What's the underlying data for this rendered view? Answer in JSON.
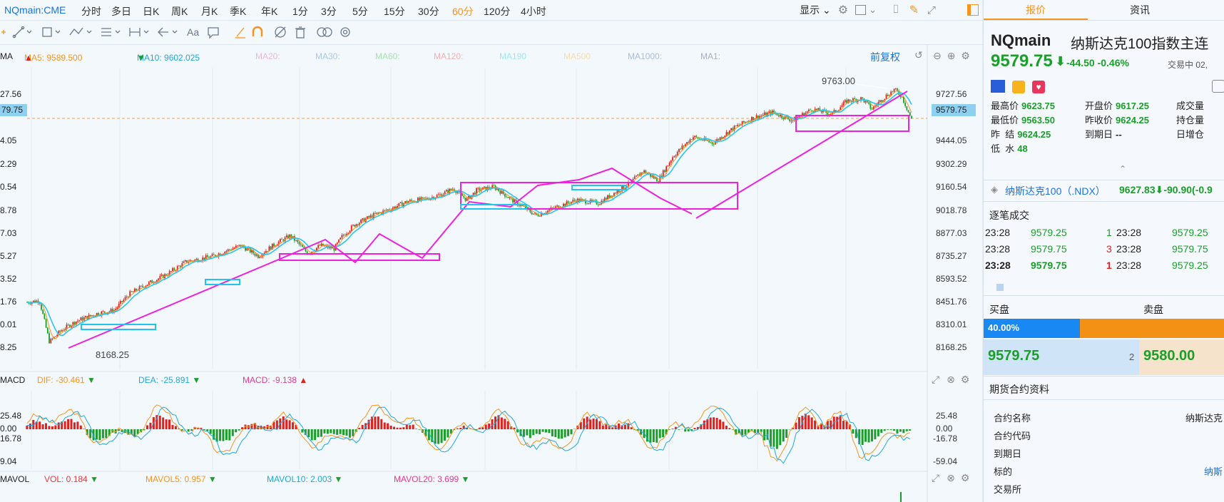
{
  "toolbar": {
    "symbol": "NQmain:CME",
    "periods": [
      "分时",
      "多日",
      "日K",
      "周K",
      "月K",
      "季K",
      "年K",
      "1分",
      "3分",
      "5分",
      "15分",
      "30分",
      "60分",
      "120分",
      "4小时"
    ],
    "active_period": "60分",
    "display_label": "显示"
  },
  "ma_legend": {
    "label": "MA",
    "ma5": "MA5: 9589.500",
    "ma10": "MA10: 9602.025",
    "ma20": "MA20:",
    "ma30": "MA30:",
    "ma60": "MA60:",
    "ma120": "MA120:",
    "ma190": "MA190",
    "ma500": "MA500",
    "ma1000": "MA1000:",
    "ma1": "MA1:",
    "adjust": "前复权",
    "colors": {
      "ma5": "#f7931e",
      "ma10": "#22a7d8",
      "ma20": "#e8a0c8",
      "ma30": "#9ec4e8",
      "ma60": "#9ae0a8",
      "ma120": "#f0a0a0",
      "ma190": "#8ee8f0",
      "ma500": "#f8d8a0",
      "ma1000": "#a0b8d8",
      "ma1": "#a0a8b8"
    }
  },
  "main_axis": [
    "9727.56",
    "9579.75",
    "9444.05",
    "9302.29",
    "9160.54",
    "9018.78",
    "8877.03",
    "8735.27",
    "8593.52",
    "8451.76",
    "8310.01",
    "8168.25"
  ],
  "main_axis_left": [
    "27.56",
    "79.75",
    "4.05",
    "2.29",
    "0.54",
    "8.78",
    "7.03",
    "5.27",
    "3.52",
    "1.76",
    "0.01",
    "8.25"
  ],
  "annotations": {
    "high": "9763.00",
    "low": "8168.25"
  },
  "macd_legend": {
    "label": "MACD",
    "dif": "DIF: -30.461",
    "dea": "DEA: -25.891",
    "macd": "MACD: -9.138"
  },
  "macd_axis": [
    "25.48",
    "0.00",
    "-16.78",
    "-59.04"
  ],
  "macd_axis_left": [
    "25.48",
    "0.00",
    "16.78",
    "9.04"
  ],
  "vol_legend": {
    "label": "MAVOL",
    "vol": "VOL: 0.184",
    "mavol5": "MAVOL5: 0.957",
    "mavol10": "MAVOL10: 2.003",
    "mavol20": "MAVOL20: 3.699"
  },
  "sidebar": {
    "tabs": [
      "报价",
      "资讯"
    ],
    "code": "NQmain",
    "name": "纳斯达克100指数主连",
    "price": "9579.75",
    "change": "-44.50",
    "change_pct": "-0.46%",
    "status": "交易中 02,",
    "stats": [
      {
        "k": "最高价",
        "v": "9623.75"
      },
      {
        "k": "开盘价",
        "v": "9617.25"
      },
      {
        "k": "成交量",
        "v": ""
      },
      {
        "k": "最低价",
        "v": "9563.50"
      },
      {
        "k": "昨收价",
        "v": "9624.25"
      },
      {
        "k": "持仓量",
        "v": ""
      },
      {
        "k": "昨  结",
        "v": "9624.25"
      },
      {
        "k": "到期日",
        "v": "--"
      },
      {
        "k": "日增仓",
        "v": ""
      },
      {
        "k": "低  水",
        "v": "48"
      }
    ],
    "index_name": "纳斯达克100（.NDX）",
    "index_price": "9627.83",
    "index_change": "-90.90(-0.9",
    "trades_title": "逐笔成交",
    "trades": [
      {
        "t": "23:28",
        "p": "9579.25",
        "n": "1",
        "t2": "23:28",
        "p2": "9579.25"
      },
      {
        "t": "23:28",
        "p": "9579.75",
        "n": "3",
        "t2": "23:28",
        "p2": "9579.75"
      },
      {
        "t": "23:28",
        "p": "9579.75",
        "n": "1",
        "t2": "23:28",
        "p2": "9579.25"
      }
    ],
    "buy_label": "买盘",
    "sell_label": "卖盘",
    "buy_pct": "40.00%",
    "buy_fraction": 0.4,
    "bid": "9579.75",
    "bid_size": "2",
    "ask": "9580.00",
    "contract_title": "期货合约资料",
    "contract_rows": [
      {
        "k": "合约名称",
        "v": "纳斯达克"
      },
      {
        "k": "合约代码",
        "v": ""
      },
      {
        "k": "到期日",
        "v": ""
      },
      {
        "k": "标的",
        "v": "纳斯"
      },
      {
        "k": "交易所",
        "v": ""
      }
    ]
  }
}
